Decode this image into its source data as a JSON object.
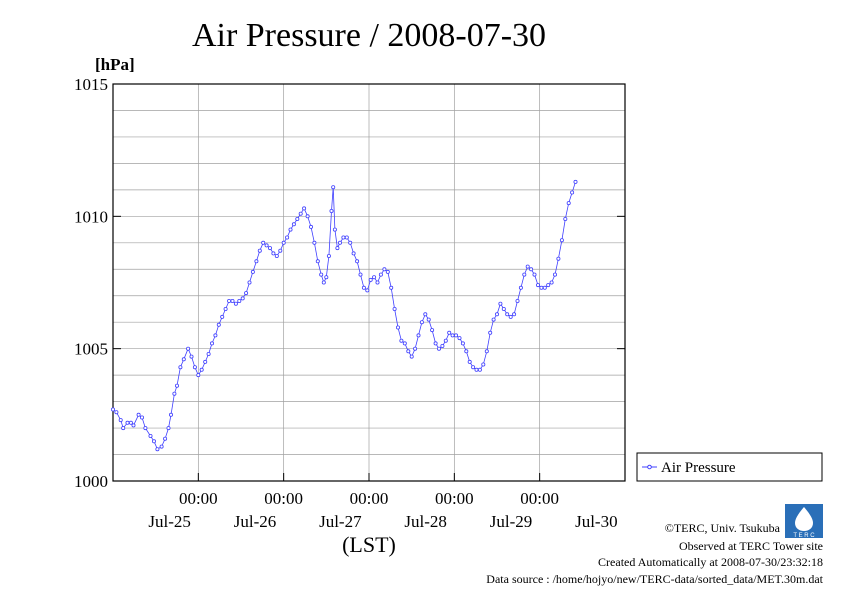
{
  "chart_data": {
    "type": "line",
    "title": "Air Pressure / 2008-07-30",
    "y_unit": "[hPa]",
    "xlabel": "(LST)",
    "ylim": [
      1000,
      1015
    ],
    "y_ticks": [
      "1000",
      "1005",
      "1010",
      "1015"
    ],
    "x_time_ticks": [
      "00:00",
      "00:00",
      "00:00",
      "00:00",
      "00:00"
    ],
    "x_date_labels": [
      "Jul-25",
      "Jul-26",
      "Jul-27",
      "Jul-28",
      "Jul-29",
      "Jul-30"
    ],
    "xlim_days": [
      0,
      6
    ],
    "grid": true,
    "legend_position": "right",
    "series": [
      {
        "name": "Air Pressure",
        "color": "#4040ff",
        "points": [
          [
            0.0,
            1002.7
          ],
          [
            0.04,
            1002.6
          ],
          [
            0.09,
            1002.3
          ],
          [
            0.12,
            1002.0
          ],
          [
            0.17,
            1002.2
          ],
          [
            0.21,
            1002.2
          ],
          [
            0.24,
            1002.1
          ],
          [
            0.3,
            1002.5
          ],
          [
            0.34,
            1002.4
          ],
          [
            0.38,
            1002.0
          ],
          [
            0.44,
            1001.7
          ],
          [
            0.48,
            1001.5
          ],
          [
            0.52,
            1001.2
          ],
          [
            0.57,
            1001.3
          ],
          [
            0.61,
            1001.6
          ],
          [
            0.65,
            1002.0
          ],
          [
            0.68,
            1002.5
          ],
          [
            0.72,
            1003.3
          ],
          [
            0.75,
            1003.6
          ],
          [
            0.79,
            1004.3
          ],
          [
            0.83,
            1004.6
          ],
          [
            0.88,
            1005.0
          ],
          [
            0.92,
            1004.7
          ],
          [
            0.96,
            1004.3
          ],
          [
            1.0,
            1004.0
          ],
          [
            1.04,
            1004.2
          ],
          [
            1.08,
            1004.5
          ],
          [
            1.12,
            1004.8
          ],
          [
            1.16,
            1005.2
          ],
          [
            1.2,
            1005.5
          ],
          [
            1.24,
            1005.9
          ],
          [
            1.28,
            1006.2
          ],
          [
            1.32,
            1006.5
          ],
          [
            1.36,
            1006.8
          ],
          [
            1.4,
            1006.8
          ],
          [
            1.44,
            1006.7
          ],
          [
            1.48,
            1006.8
          ],
          [
            1.52,
            1006.9
          ],
          [
            1.56,
            1007.1
          ],
          [
            1.6,
            1007.5
          ],
          [
            1.64,
            1007.9
          ],
          [
            1.68,
            1008.3
          ],
          [
            1.72,
            1008.7
          ],
          [
            1.76,
            1009.0
          ],
          [
            1.8,
            1008.9
          ],
          [
            1.84,
            1008.8
          ],
          [
            1.88,
            1008.6
          ],
          [
            1.92,
            1008.5
          ],
          [
            1.96,
            1008.7
          ],
          [
            2.0,
            1009.0
          ],
          [
            2.04,
            1009.2
          ],
          [
            2.08,
            1009.5
          ],
          [
            2.12,
            1009.7
          ],
          [
            2.16,
            1009.9
          ],
          [
            2.2,
            1010.1
          ],
          [
            2.24,
            1010.3
          ],
          [
            2.28,
            1010.0
          ],
          [
            2.32,
            1009.6
          ],
          [
            2.36,
            1009.0
          ],
          [
            2.4,
            1008.3
          ],
          [
            2.44,
            1007.8
          ],
          [
            2.47,
            1007.5
          ],
          [
            2.5,
            1007.7
          ],
          [
            2.53,
            1008.5
          ],
          [
            2.56,
            1010.2
          ],
          [
            2.58,
            1011.1
          ],
          [
            2.6,
            1009.5
          ],
          [
            2.63,
            1008.8
          ],
          [
            2.66,
            1009.0
          ],
          [
            2.7,
            1009.2
          ],
          [
            2.74,
            1009.2
          ],
          [
            2.78,
            1009.0
          ],
          [
            2.82,
            1008.6
          ],
          [
            2.86,
            1008.3
          ],
          [
            2.9,
            1007.8
          ],
          [
            2.94,
            1007.3
          ],
          [
            2.98,
            1007.2
          ],
          [
            3.02,
            1007.6
          ],
          [
            3.06,
            1007.7
          ],
          [
            3.1,
            1007.5
          ],
          [
            3.14,
            1007.8
          ],
          [
            3.18,
            1008.0
          ],
          [
            3.22,
            1007.9
          ],
          [
            3.26,
            1007.3
          ],
          [
            3.3,
            1006.5
          ],
          [
            3.34,
            1005.8
          ],
          [
            3.38,
            1005.3
          ],
          [
            3.42,
            1005.2
          ],
          [
            3.46,
            1004.9
          ],
          [
            3.5,
            1004.7
          ],
          [
            3.54,
            1005.0
          ],
          [
            3.58,
            1005.5
          ],
          [
            3.62,
            1006.0
          ],
          [
            3.66,
            1006.3
          ],
          [
            3.7,
            1006.1
          ],
          [
            3.74,
            1005.7
          ],
          [
            3.78,
            1005.2
          ],
          [
            3.82,
            1005.0
          ],
          [
            3.86,
            1005.1
          ],
          [
            3.9,
            1005.3
          ],
          [
            3.94,
            1005.6
          ],
          [
            3.98,
            1005.5
          ],
          [
            4.02,
            1005.5
          ],
          [
            4.06,
            1005.4
          ],
          [
            4.1,
            1005.2
          ],
          [
            4.14,
            1004.9
          ],
          [
            4.18,
            1004.5
          ],
          [
            4.22,
            1004.3
          ],
          [
            4.26,
            1004.2
          ],
          [
            4.3,
            1004.2
          ],
          [
            4.34,
            1004.4
          ],
          [
            4.38,
            1004.9
          ],
          [
            4.42,
            1005.6
          ],
          [
            4.46,
            1006.1
          ],
          [
            4.5,
            1006.3
          ],
          [
            4.54,
            1006.7
          ],
          [
            4.58,
            1006.5
          ],
          [
            4.62,
            1006.3
          ],
          [
            4.66,
            1006.2
          ],
          [
            4.7,
            1006.3
          ],
          [
            4.74,
            1006.8
          ],
          [
            4.78,
            1007.3
          ],
          [
            4.82,
            1007.8
          ],
          [
            4.86,
            1008.1
          ],
          [
            4.9,
            1008.0
          ],
          [
            4.94,
            1007.8
          ],
          [
            4.98,
            1007.4
          ],
          [
            5.02,
            1007.3
          ],
          [
            5.06,
            1007.3
          ],
          [
            5.1,
            1007.4
          ],
          [
            5.14,
            1007.5
          ],
          [
            5.18,
            1007.8
          ],
          [
            5.22,
            1008.4
          ],
          [
            5.26,
            1009.1
          ],
          [
            5.3,
            1009.9
          ],
          [
            5.34,
            1010.5
          ],
          [
            5.38,
            1010.9
          ],
          [
            5.42,
            1011.3
          ]
        ]
      }
    ]
  },
  "footer": {
    "copyright": "©TERC, Univ. Tsukuba",
    "observed": "Observed at TERC Tower site",
    "created": "Created Automatically at 2008-07-30/23:32:18",
    "source": "Data source : /home/hojyo/new/TERC-data/sorted_data/MET.30m.dat",
    "logo_text": "T E R C"
  }
}
